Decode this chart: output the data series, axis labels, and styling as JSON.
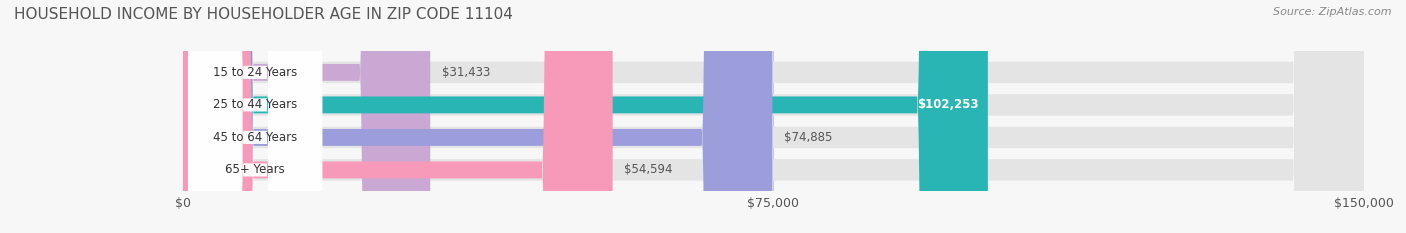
{
  "title": "HOUSEHOLD INCOME BY HOUSEHOLDER AGE IN ZIP CODE 11104",
  "source": "Source: ZipAtlas.com",
  "categories": [
    "15 to 24 Years",
    "25 to 44 Years",
    "45 to 64 Years",
    "65+ Years"
  ],
  "values": [
    31433,
    102253,
    74885,
    54594
  ],
  "bar_colors": [
    "#c9a8d4",
    "#2ab5b5",
    "#9b9edb",
    "#f799b8"
  ],
  "track_color": "#e4e4e4",
  "label_colors": [
    "#555555",
    "#ffffff",
    "#555555",
    "#555555"
  ],
  "value_labels": [
    "$31,433",
    "$102,253",
    "$74,885",
    "$54,594"
  ],
  "xlim": [
    0,
    150000
  ],
  "xticks": [
    0,
    75000,
    150000
  ],
  "xticklabels": [
    "$0",
    "$75,000",
    "$150,000"
  ],
  "background_color": "#f7f7f7",
  "title_fontsize": 11,
  "bar_height": 0.52,
  "figsize": [
    14.06,
    2.33
  ]
}
